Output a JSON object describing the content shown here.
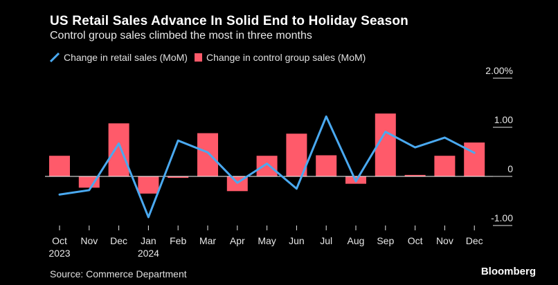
{
  "header": {
    "title": "US Retail Sales Advance In Solid End to Holiday Season",
    "subtitle": "Control group sales climbed the most in three months"
  },
  "legend": {
    "line_label": "Change in retail sales (MoM)",
    "bar_label": "Change in control group sales (MoM)"
  },
  "footer": {
    "source": "Source: Commerce Department",
    "brand": "Bloomberg"
  },
  "colors": {
    "background": "#000000",
    "line": "#4aa9f0",
    "bar": "#ff5a6a",
    "axis": "#ffffff",
    "text": "#e8e8e8"
  },
  "chart_data": {
    "type": "bar",
    "title": "US Retail Sales Advance In Solid End to Holiday Season",
    "subtitle": "Control group sales climbed the most in three months",
    "categories": [
      "Oct",
      "Nov",
      "Dec",
      "Jan",
      "Feb",
      "Mar",
      "Apr",
      "May",
      "Jun",
      "Jul",
      "Aug",
      "Sep",
      "Oct",
      "Nov",
      "Dec"
    ],
    "year_labels": [
      "2023",
      "",
      "",
      "2024",
      "",
      "",
      "",
      "",
      "",
      "",
      "",
      "",
      "",
      "",
      ""
    ],
    "series": [
      {
        "name": "Change in control group sales (MoM)",
        "kind": "bar",
        "values": [
          0.42,
          -0.23,
          1.08,
          -0.35,
          -0.03,
          0.88,
          -0.3,
          0.42,
          0.87,
          0.43,
          -0.15,
          1.28,
          0.03,
          0.42,
          0.69
        ]
      },
      {
        "name": "Change in retail sales (MoM)",
        "kind": "line",
        "values": [
          -0.37,
          -0.28,
          0.67,
          -0.83,
          0.73,
          0.49,
          -0.13,
          0.26,
          -0.25,
          1.22,
          -0.1,
          0.91,
          0.59,
          0.79,
          0.48
        ]
      }
    ],
    "y_ticks": [
      {
        "value": 2.0,
        "label": "2.00%"
      },
      {
        "value": 1.0,
        "label": "1.00"
      },
      {
        "value": 0.0,
        "label": "0"
      },
      {
        "value": -1.0,
        "label": "-1.00"
      }
    ],
    "ylim": [
      -1.0,
      2.0
    ],
    "xlabel": "",
    "ylabel": "",
    "grid": false,
    "axis_side": "right"
  }
}
